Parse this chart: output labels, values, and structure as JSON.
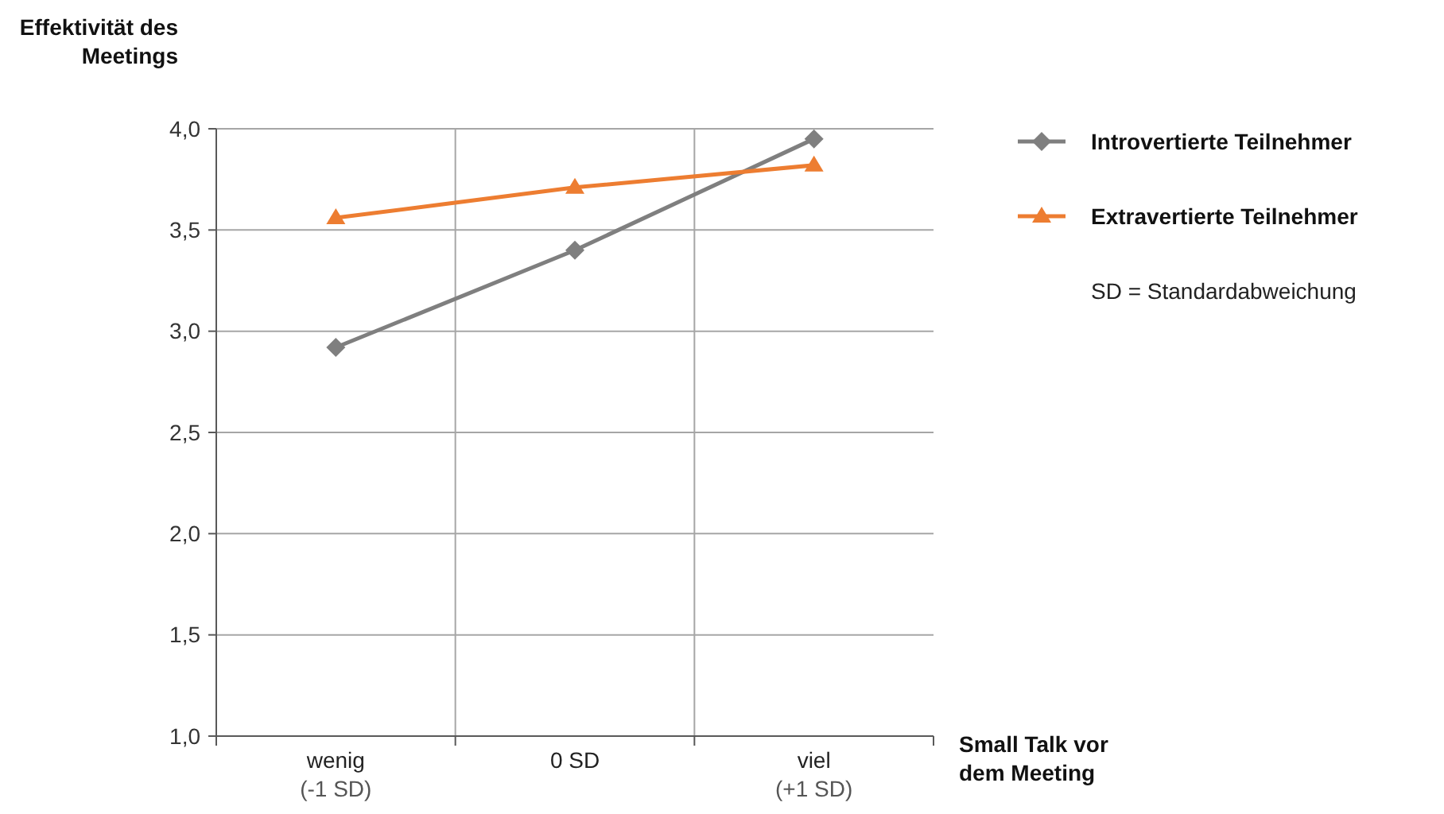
{
  "chart_data": {
    "type": "line",
    "ylabel": "Effektivität des\nMeetings",
    "xlabel": "Small Talk vor\ndem Meeting",
    "categories": [
      "wenig\n(-1 SD)",
      "0 SD",
      "viel\n(+1 SD)"
    ],
    "series": [
      {
        "name": "Introvertierte Teilnehmer",
        "color": "#7f7f7f",
        "marker": "diamond",
        "values": [
          2.92,
          3.4,
          3.95
        ]
      },
      {
        "name": "Extravertierte Teilnehmer",
        "color": "#ed7d31",
        "marker": "triangle",
        "values": [
          3.56,
          3.71,
          3.82
        ]
      }
    ],
    "ylim": [
      1,
      4
    ],
    "yticks": [
      {
        "value": 1,
        "label": "1,0"
      },
      {
        "value": 1.5,
        "label": "1,5"
      },
      {
        "value": 2,
        "label": "2,0"
      },
      {
        "value": 2.5,
        "label": "2,5"
      },
      {
        "value": 3,
        "label": "3,0"
      },
      {
        "value": 3.5,
        "label": "3,5"
      },
      {
        "value": 4,
        "label": "4,0"
      }
    ],
    "grid": true,
    "legend": "right",
    "line_style": "solid",
    "annotations": [
      "SD = Standardabweichung"
    ]
  }
}
